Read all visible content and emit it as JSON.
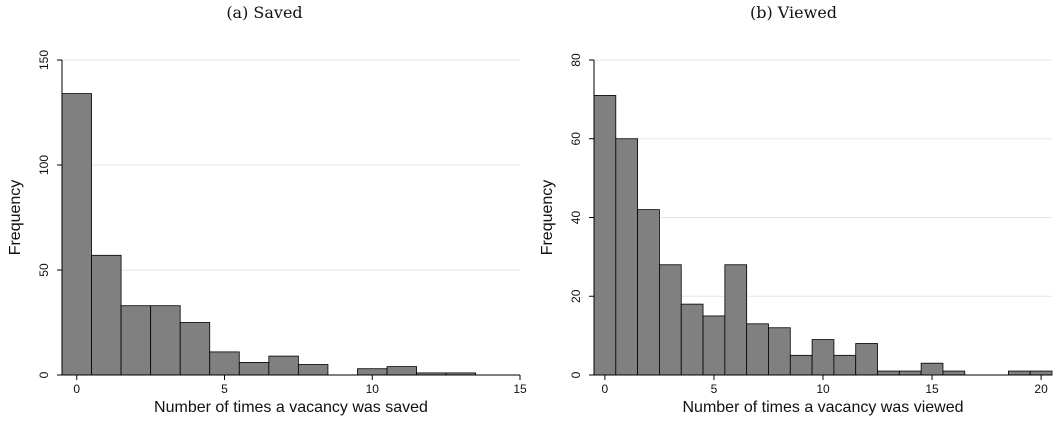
{
  "chart_data": [
    {
      "type": "bar",
      "title": "(a) Saved",
      "xlabel": "Number of times a vacancy was saved",
      "ylabel": "Frequency",
      "bin_width": 1,
      "x_start": -0.5,
      "xlim": [
        -0.5,
        15
      ],
      "ylim": [
        0,
        150
      ],
      "xticks": [
        0,
        5,
        10,
        15
      ],
      "yticks": [
        0,
        50,
        100,
        150
      ],
      "grid": true,
      "values": [
        134,
        57,
        33,
        33,
        25,
        11,
        6,
        9,
        5,
        0,
        3,
        4,
        1,
        1
      ]
    },
    {
      "type": "bar",
      "title": "(b) Viewed",
      "xlabel": "Number of times a vacancy was viewed",
      "ylabel": "Frequency",
      "bin_width": 1,
      "x_start": -0.5,
      "xlim": [
        -0.5,
        20.5
      ],
      "ylim": [
        0,
        80
      ],
      "xticks": [
        0,
        5,
        10,
        15,
        20
      ],
      "yticks": [
        0,
        20,
        40,
        60,
        80
      ],
      "grid": true,
      "values": [
        71,
        60,
        42,
        28,
        18,
        15,
        28,
        13,
        12,
        5,
        9,
        5,
        8,
        1,
        1,
        3,
        1,
        0,
        0,
        1,
        1
      ]
    }
  ],
  "colors": {
    "bar_fill": "#808080",
    "bar_stroke": "#000000",
    "grid": "#e3e6ea",
    "axis": "#000000"
  }
}
